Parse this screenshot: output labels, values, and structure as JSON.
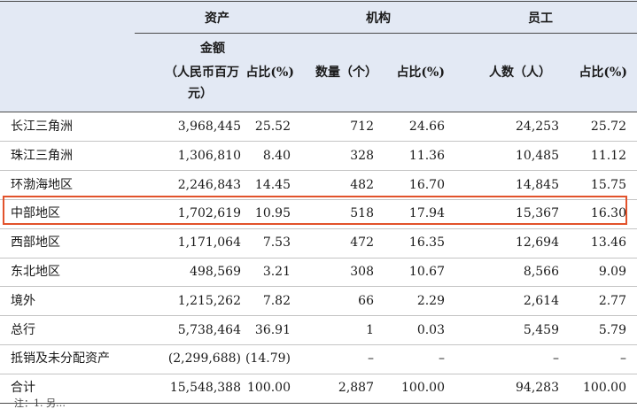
{
  "table": {
    "group_headers": {
      "assets": "资产",
      "institutions": "机构",
      "employees": "员工"
    },
    "sub_headers": {
      "amount_line1": "金额",
      "amount_line2": "（人民币百万",
      "amount_line3": "元）",
      "asset_pct": "占比(%)",
      "inst_count": "数量（个）",
      "inst_pct": "占比(%)",
      "emp_count": "人数（人）",
      "emp_pct": "占比(%)"
    },
    "rows": [
      {
        "region": "长江三角洲",
        "amount": "3,968,445",
        "asset_pct": "25.52",
        "inst_count": "712",
        "inst_pct": "24.66",
        "emp_count": "24,253",
        "emp_pct": "25.72"
      },
      {
        "region": "珠江三角洲",
        "amount": "1,306,810",
        "asset_pct": "8.40",
        "inst_count": "328",
        "inst_pct": "11.36",
        "emp_count": "10,485",
        "emp_pct": "11.12"
      },
      {
        "region": "环渤海地区",
        "amount": "2,246,843",
        "asset_pct": "14.45",
        "inst_count": "482",
        "inst_pct": "16.70",
        "emp_count": "14,845",
        "emp_pct": "15.75"
      },
      {
        "region": "中部地区",
        "amount": "1,702,619",
        "asset_pct": "10.95",
        "inst_count": "518",
        "inst_pct": "17.94",
        "emp_count": "15,367",
        "emp_pct": "16.30"
      },
      {
        "region": "西部地区",
        "amount": "1,171,064",
        "asset_pct": "7.53",
        "inst_count": "472",
        "inst_pct": "16.35",
        "emp_count": "12,694",
        "emp_pct": "13.46"
      },
      {
        "region": "东北地区",
        "amount": "498,569",
        "asset_pct": "3.21",
        "inst_count": "308",
        "inst_pct": "10.67",
        "emp_count": "8,566",
        "emp_pct": "9.09"
      },
      {
        "region": "境外",
        "amount": "1,215,262",
        "asset_pct": "7.82",
        "inst_count": "66",
        "inst_pct": "2.29",
        "emp_count": "2,614",
        "emp_pct": "2.77"
      },
      {
        "region": "总行",
        "amount": "5,738,464",
        "asset_pct": "36.91",
        "inst_count": "1",
        "inst_pct": "0.03",
        "emp_count": "5,459",
        "emp_pct": "5.79"
      },
      {
        "region": "抵销及未分配资产",
        "amount": "(2,299,688)",
        "asset_pct": "(14.79)",
        "inst_count": "–",
        "inst_pct": "–",
        "emp_count": "–",
        "emp_pct": "–"
      },
      {
        "region": "合计",
        "amount": "15,548,388",
        "asset_pct": "100.00",
        "inst_count": "2,887",
        "inst_pct": "100.00",
        "emp_count": "94,283",
        "emp_pct": "100.00"
      }
    ],
    "highlight_color": "#e2522b"
  },
  "footnote": "注：1. 另…"
}
